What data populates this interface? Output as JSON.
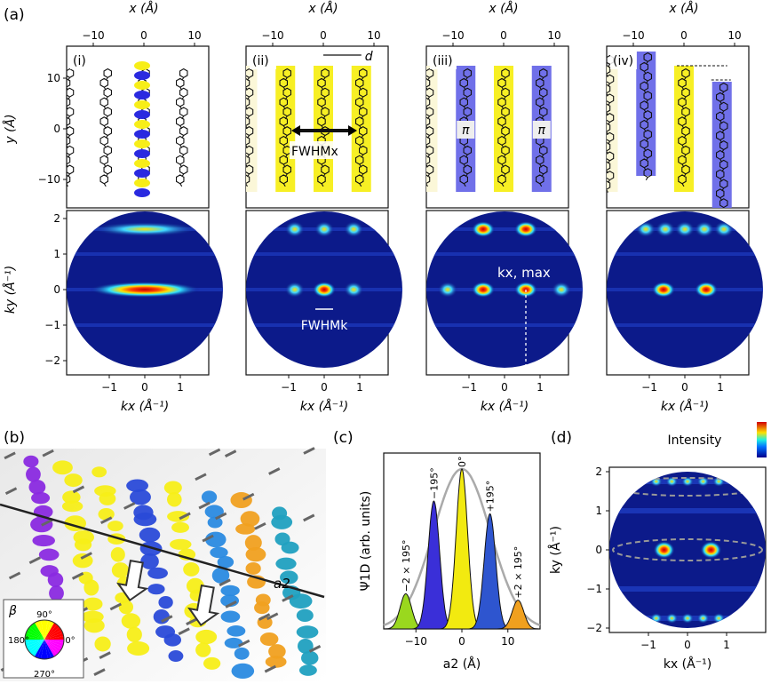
{
  "panel_letters": {
    "a": "(a)",
    "b": "(b)",
    "c": "(c)",
    "d": "(d)"
  },
  "panel_a": {
    "x_axis_label": "x (Å)",
    "y_axis_label": "y (Å)",
    "kx_axis_label": "kx (Å⁻¹)",
    "ky_axis_label": "ky (Å⁻¹)",
    "real_x_ticks": [
      "−10",
      "0",
      "10"
    ],
    "real_y_ticks": [
      "10",
      "0",
      "−10"
    ],
    "k_x_ticks": [
      "−1",
      "0",
      "1"
    ],
    "k_y_ticks": [
      "2",
      "1",
      "0",
      "−1",
      "−2"
    ],
    "subpanels": [
      {
        "label": "(i)"
      },
      {
        "label": "(ii)",
        "annotation_fwhm_x": "FWHMx",
        "annotation_d": "d",
        "annotation_fwhm_k": "FWHMk"
      },
      {
        "label": "(iii)",
        "annotation_pi": "π",
        "annotation_kmax": "kx, max"
      },
      {
        "label": "(iv)"
      }
    ]
  },
  "panel_b": {
    "vector_label": "a2",
    "legend_symbol": "β",
    "wheel_labels": [
      "90°",
      "0°",
      "270°",
      "180°"
    ],
    "wheel_colors": [
      "#ff0000",
      "#ffff00",
      "#00ff00",
      "#00ffff",
      "#0000ff",
      "#ff00ff"
    ]
  },
  "panel_c": {
    "y_axis_label": "Ψ1D (arb. units)",
    "x_axis_label": "a2 (Å)",
    "x_ticks": [
      "−10",
      "0",
      "10"
    ],
    "peak_labels": [
      "−2 × 195°",
      "−195°",
      "0°",
      "+195°",
      "+2 × 195°"
    ],
    "chart_data": {
      "type": "area",
      "x": [
        -12.2,
        -6.1,
        0,
        6.1,
        12.2
      ],
      "values": [
        0.22,
        0.8,
        1.0,
        0.72,
        0.18
      ],
      "peak_colors": [
        "#9ad81e",
        "#3a2fd8",
        "#f2ea10",
        "#2e55cf",
        "#f0a01e"
      ],
      "envelope_color": "#aaaaaa",
      "xlim": [
        -17,
        17
      ],
      "ylim": [
        0,
        1.1
      ]
    }
  },
  "panel_d": {
    "colorbar_label": "Intensity",
    "kx_axis_label": "kx (Å⁻¹)",
    "ky_axis_label": "ky (Å⁻¹)",
    "x_ticks": [
      "−1",
      "0",
      "1"
    ],
    "y_ticks": [
      "2",
      "1",
      "0",
      "−1",
      "−2"
    ]
  },
  "colors": {
    "yellow": "#f7ee18",
    "blue": "#5050e0",
    "dark_bg": "#0c1a8a",
    "hot": "#ff2a00"
  }
}
